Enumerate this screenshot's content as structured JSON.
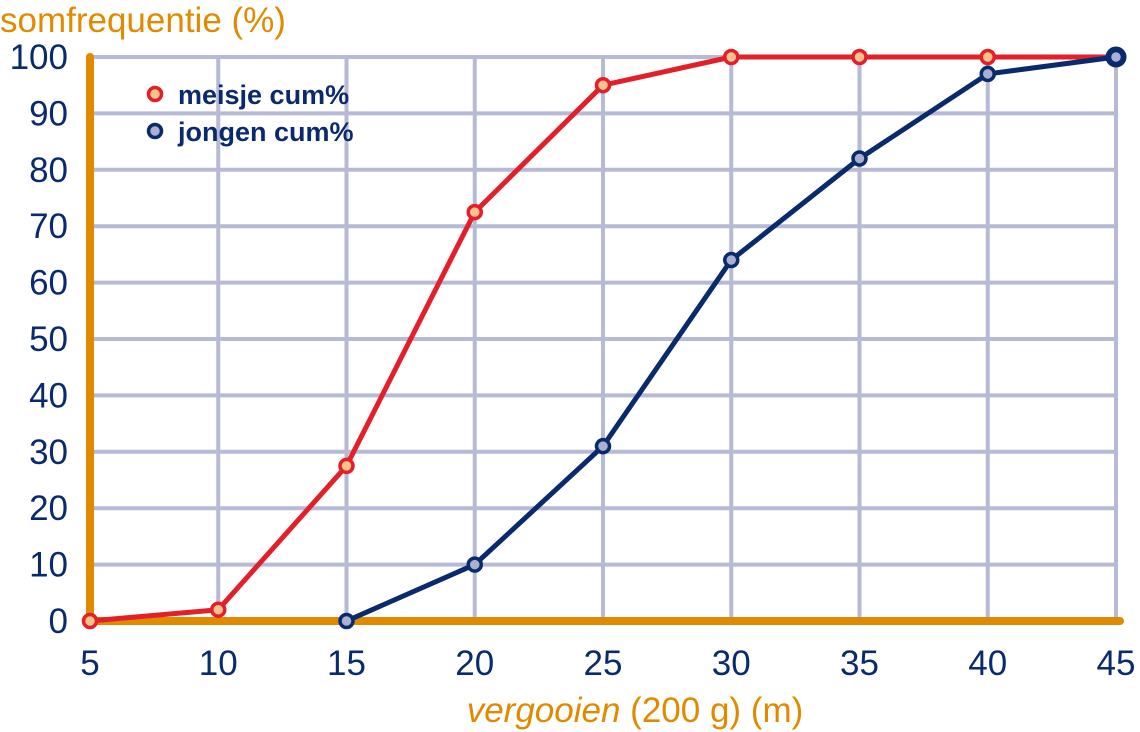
{
  "chart_data": {
    "type": "line",
    "title": "",
    "ylabel": "somfrequentie (%)",
    "xlabel_italic": "vergooien",
    "xlabel_rest": " (200 g) (m)",
    "x": [
      5,
      10,
      15,
      20,
      25,
      30,
      35,
      40,
      45
    ],
    "xlim": [
      5,
      45
    ],
    "ylim": [
      0,
      100
    ],
    "yticks": [
      0,
      10,
      20,
      30,
      40,
      50,
      60,
      70,
      80,
      90,
      100
    ],
    "grid": true,
    "legend_position": "top-left",
    "series": [
      {
        "name": "meisje cum%",
        "color": "#e3202a",
        "marker_fill": "#f6c38a",
        "points": [
          [
            5,
            0
          ],
          [
            10,
            2
          ],
          [
            15,
            27.5
          ],
          [
            20,
            72.5
          ],
          [
            25,
            95
          ],
          [
            30,
            100
          ],
          [
            35,
            100
          ],
          [
            40,
            100
          ],
          [
            45,
            100
          ]
        ]
      },
      {
        "name": "jongen cum%",
        "color": "#0a2a6e",
        "marker_fill": "#aab0cf",
        "points": [
          [
            15,
            0
          ],
          [
            20,
            10
          ],
          [
            25,
            31
          ],
          [
            30,
            64
          ],
          [
            35,
            82
          ],
          [
            40,
            97
          ],
          [
            45,
            100
          ]
        ]
      }
    ]
  },
  "colors": {
    "axis": "#e08a00",
    "grid": "#b6bad6",
    "text": "#0a2a6e"
  }
}
